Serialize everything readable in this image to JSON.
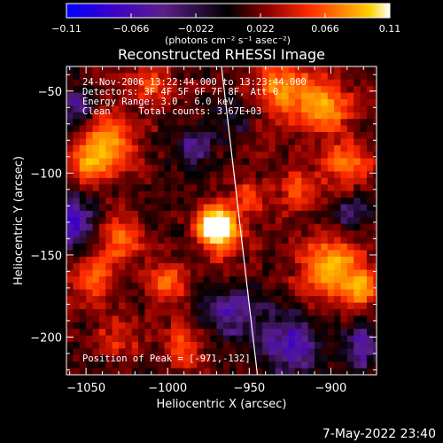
{
  "chart_data": {
    "type": "heatmap",
    "title": "Reconstructed RHESSI Image",
    "xlabel": "Heliocentric X (arcsec)",
    "ylabel": "Heliocentric Y (arcsec)",
    "xlim": [
      -1062,
      -872
    ],
    "ylim": [
      -223,
      -35
    ],
    "x_ticks": [
      -1050,
      -1000,
      -950,
      -900
    ],
    "y_ticks": [
      -50,
      -100,
      -150,
      -200
    ],
    "colorbar": {
      "range": [
        -0.11,
        0.11
      ],
      "ticks": [
        -0.11,
        -0.066,
        -0.022,
        0.022,
        0.066,
        0.11
      ],
      "tick_labels": [
        "-0.11",
        "-0.066",
        "-0.022",
        "0.022",
        "0.066",
        "0.11"
      ],
      "unit_label": "(photons cm⁻² s⁻¹ asec⁻²)"
    },
    "annotations": [
      "24-Nov-2006 13:22:44.000 to 13:23:44.000",
      "Detectors: 3F 4F 5F 6F 7F 8F, Att 0",
      "Energy Range: 3.0 - 6.0 keV",
      "Clean     Total counts: 3.67E+03"
    ],
    "peak_label": "Position of Peak = [-971,-132]",
    "peak": {
      "x": -971,
      "y": -132,
      "value": 0.11
    },
    "limb_line": [
      [
        -967,
        -35
      ],
      [
        -945,
        -223
      ]
    ],
    "blobs": [
      {
        "x": -971,
        "y": -132,
        "sigma": 7,
        "amp": 0.16
      },
      {
        "x": -965,
        "y": -140,
        "sigma": 10,
        "amp": 0.05
      },
      {
        "x": -1035,
        "y": -80,
        "sigma": 11,
        "amp": 0.075
      },
      {
        "x": -1048,
        "y": -95,
        "sigma": 9,
        "amp": 0.06
      },
      {
        "x": -1030,
        "y": -140,
        "sigma": 9,
        "amp": 0.06
      },
      {
        "x": -1045,
        "y": -165,
        "sigma": 10,
        "amp": 0.055
      },
      {
        "x": -1000,
        "y": -168,
        "sigma": 9,
        "amp": 0.055
      },
      {
        "x": -1030,
        "y": -200,
        "sigma": 8,
        "amp": 0.04
      },
      {
        "x": -990,
        "y": -205,
        "sigma": 9,
        "amp": 0.045
      },
      {
        "x": -930,
        "y": -48,
        "sigma": 12,
        "amp": 0.065
      },
      {
        "x": -905,
        "y": -60,
        "sigma": 12,
        "amp": 0.07
      },
      {
        "x": -890,
        "y": -95,
        "sigma": 10,
        "amp": 0.06
      },
      {
        "x": -920,
        "y": -110,
        "sigma": 9,
        "amp": 0.045
      },
      {
        "x": -900,
        "y": -158,
        "sigma": 13,
        "amp": 0.085
      },
      {
        "x": -880,
        "y": -170,
        "sigma": 8,
        "amp": 0.06
      },
      {
        "x": -950,
        "y": -115,
        "sigma": 8,
        "amp": 0.045
      },
      {
        "x": -1010,
        "y": -45,
        "sigma": 9,
        "amp": 0.04
      },
      {
        "x": -1055,
        "y": -60,
        "sigma": 7,
        "amp": -0.05
      },
      {
        "x": -1060,
        "y": -130,
        "sigma": 12,
        "amp": -0.06
      },
      {
        "x": -960,
        "y": -185,
        "sigma": 12,
        "amp": -0.05
      },
      {
        "x": -925,
        "y": -205,
        "sigma": 12,
        "amp": -0.065
      },
      {
        "x": -880,
        "y": -205,
        "sigma": 10,
        "amp": -0.05
      },
      {
        "x": -890,
        "y": -125,
        "sigma": 8,
        "amp": -0.04
      },
      {
        "x": -985,
        "y": -85,
        "sigma": 9,
        "amp": -0.045
      },
      {
        "x": -960,
        "y": -65,
        "sigma": 8,
        "amp": -0.03
      }
    ],
    "colormap": [
      "#0000ff",
      "#3c00c8",
      "#5a1f8a",
      "#000000",
      "#8a0000",
      "#ff2a00",
      "#ff8a00",
      "#ffd200",
      "#ffffff"
    ]
  },
  "footer": {
    "timestamp": "7-May-2022 23:40"
  }
}
